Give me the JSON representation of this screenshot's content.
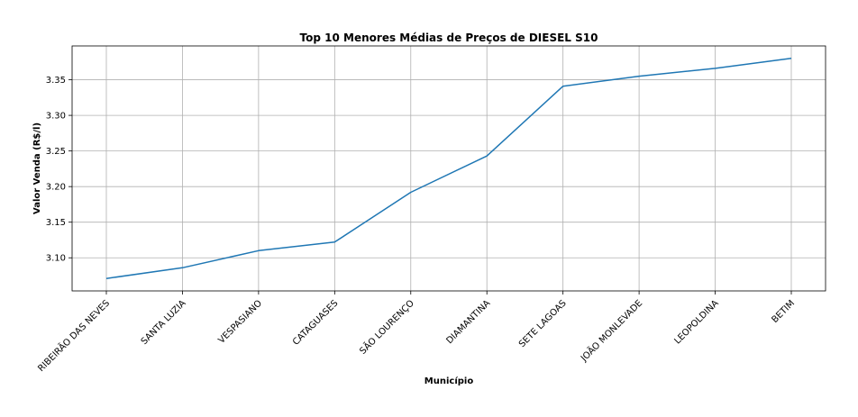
{
  "chart_data": {
    "type": "line",
    "title": "Top 10 Menores Médias de Preços de DIESEL S10",
    "xlabel": "Município",
    "ylabel": "Valor Venda (R$/l)",
    "categories": [
      "RIBEIRÃO DAS NEVES",
      "SANTA LUZIA",
      "VESPASIANO",
      "CATAGUASES",
      "SÃO LOURENÇO",
      "DIAMANTINA",
      "SETE LAGOAS",
      "JOÃO MONLEVADE",
      "LEOPOLDINA",
      "BETIM"
    ],
    "values": [
      3.071,
      3.086,
      3.11,
      3.122,
      3.192,
      3.243,
      3.341,
      3.355,
      3.366,
      3.38
    ],
    "ylim": [
      3.0535,
      3.3975
    ],
    "yticks": [
      "3.10",
      "3.15",
      "3.20",
      "3.25",
      "3.30",
      "3.35"
    ],
    "grid": true,
    "line_color": "#1f77b4"
  }
}
